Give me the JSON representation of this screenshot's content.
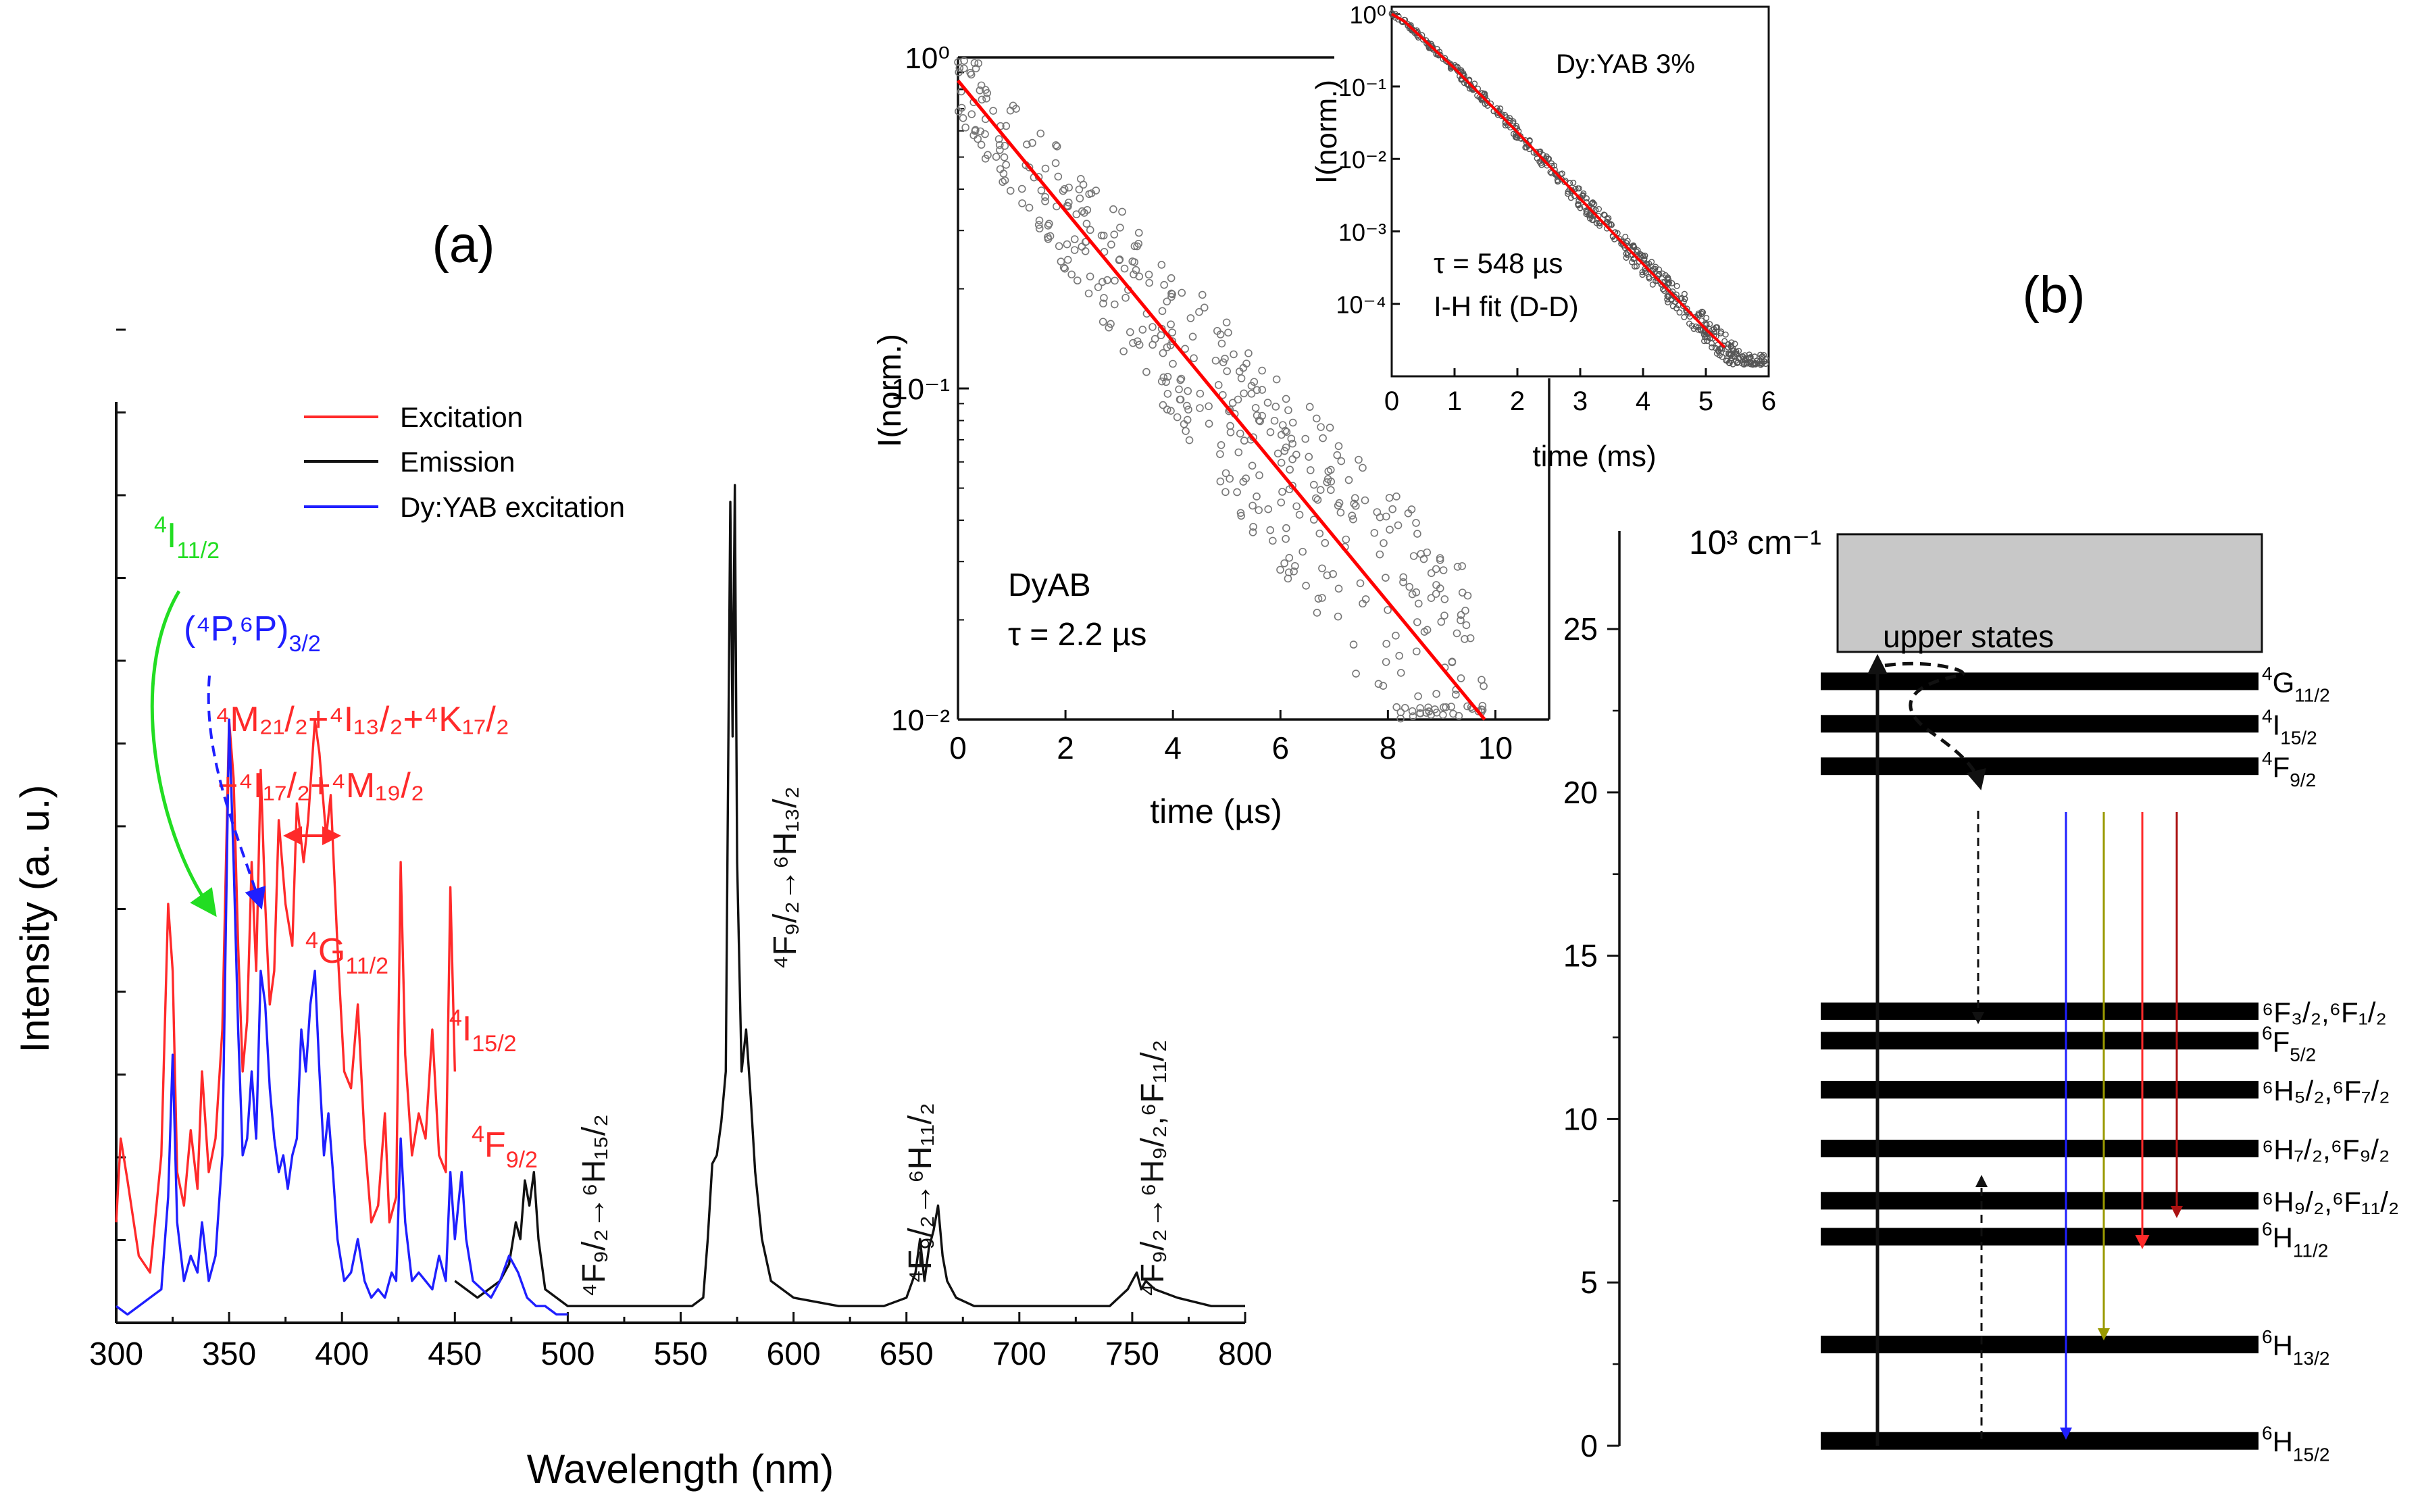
{
  "colors": {
    "excitation": "#ff2a2a",
    "emission": "#111111",
    "dy_yab": "#1f1fff",
    "green_arrow": "#22dd22",
    "fit": "#ff0000",
    "olive": "#999900",
    "dark_red": "#aa1111",
    "upper_box": "#c8c8c8"
  },
  "chart_data": [
    {
      "id": "spectra",
      "type": "line",
      "panel_label": "(a)",
      "xlabel": "Wavelength (nm)",
      "ylabel": "Intensity (a. u.)",
      "xlim": [
        300,
        800
      ],
      "xticks": [
        "300",
        "350",
        "400",
        "450",
        "500",
        "550",
        "600",
        "650",
        "700",
        "750",
        "800"
      ],
      "legend": [
        "Excitation",
        "Emission",
        "Dy:YAB excitation"
      ],
      "series": [
        {
          "name": "Excitation",
          "color_key": "excitation",
          "x": [
            300,
            302,
            305,
            310,
            315,
            320,
            323,
            325,
            327,
            330,
            333,
            336,
            338,
            341,
            344,
            347,
            350,
            352,
            354,
            356,
            358,
            360,
            362,
            364,
            366,
            368,
            370,
            372,
            375,
            378,
            380,
            383,
            385,
            388,
            390,
            393,
            395,
            398,
            401,
            404,
            407,
            410,
            413,
            416,
            419,
            421,
            424,
            426,
            428,
            431,
            434,
            437,
            440,
            443,
            446,
            448,
            450
          ],
          "y": [
            0.12,
            0.22,
            0.17,
            0.08,
            0.06,
            0.2,
            0.5,
            0.42,
            0.18,
            0.14,
            0.23,
            0.16,
            0.3,
            0.18,
            0.22,
            0.35,
            0.72,
            0.65,
            0.45,
            0.3,
            0.36,
            0.55,
            0.42,
            0.66,
            0.5,
            0.38,
            0.42,
            0.6,
            0.5,
            0.45,
            0.62,
            0.55,
            0.6,
            0.72,
            0.68,
            0.58,
            0.63,
            0.45,
            0.3,
            0.28,
            0.38,
            0.22,
            0.12,
            0.14,
            0.25,
            0.12,
            0.15,
            0.55,
            0.32,
            0.2,
            0.25,
            0.22,
            0.35,
            0.2,
            0.18,
            0.52,
            0.3
          ]
        },
        {
          "name": "Emission",
          "color_key": "emission",
          "x": [
            450,
            455,
            460,
            465,
            470,
            474,
            477,
            479,
            481,
            483,
            485,
            487,
            490,
            500,
            520,
            540,
            555,
            560,
            562,
            564,
            566,
            568,
            570,
            571,
            572,
            573,
            574,
            575,
            577,
            579,
            581,
            583,
            586,
            590,
            600,
            620,
            640,
            650,
            654,
            656,
            658,
            660,
            662,
            664,
            666,
            668,
            672,
            680,
            700,
            720,
            740,
            748,
            750,
            752,
            754,
            756,
            760,
            770,
            785,
            800
          ],
          "y": [
            0.05,
            0.04,
            0.03,
            0.04,
            0.05,
            0.07,
            0.12,
            0.1,
            0.17,
            0.14,
            0.18,
            0.1,
            0.04,
            0.02,
            0.02,
            0.02,
            0.02,
            0.03,
            0.1,
            0.19,
            0.2,
            0.24,
            0.3,
            0.65,
            0.98,
            0.7,
            1.0,
            0.55,
            0.3,
            0.35,
            0.27,
            0.18,
            0.1,
            0.05,
            0.03,
            0.02,
            0.02,
            0.03,
            0.06,
            0.1,
            0.05,
            0.09,
            0.11,
            0.14,
            0.08,
            0.05,
            0.03,
            0.02,
            0.02,
            0.02,
            0.02,
            0.04,
            0.05,
            0.06,
            0.04,
            0.05,
            0.04,
            0.03,
            0.02,
            0.02
          ]
        },
        {
          "name": "Dy:YAB excitation",
          "color_key": "dy_yab",
          "x": [
            300,
            305,
            310,
            315,
            320,
            323,
            325,
            327,
            330,
            333,
            336,
            338,
            341,
            344,
            347,
            350,
            352,
            354,
            356,
            358,
            360,
            362,
            364,
            366,
            368,
            370,
            372,
            374,
            376,
            378,
            380,
            382,
            384,
            386,
            388,
            390,
            392,
            394,
            396,
            398,
            401,
            404,
            407,
            410,
            413,
            416,
            419,
            422,
            424,
            426,
            428,
            431,
            434,
            437,
            440,
            443,
            446,
            448,
            450,
            453,
            455,
            458,
            462,
            466,
            470,
            474,
            478,
            482,
            486,
            490,
            495,
            500
          ],
          "y": [
            0.02,
            0.01,
            0.02,
            0.03,
            0.04,
            0.15,
            0.32,
            0.12,
            0.05,
            0.08,
            0.06,
            0.12,
            0.05,
            0.08,
            0.2,
            0.72,
            0.55,
            0.35,
            0.2,
            0.22,
            0.3,
            0.22,
            0.42,
            0.38,
            0.28,
            0.22,
            0.18,
            0.2,
            0.16,
            0.2,
            0.22,
            0.35,
            0.3,
            0.38,
            0.42,
            0.3,
            0.2,
            0.25,
            0.18,
            0.1,
            0.05,
            0.06,
            0.1,
            0.05,
            0.03,
            0.04,
            0.03,
            0.06,
            0.05,
            0.22,
            0.12,
            0.05,
            0.06,
            0.05,
            0.04,
            0.08,
            0.05,
            0.18,
            0.1,
            0.18,
            0.1,
            0.05,
            0.04,
            0.03,
            0.05,
            0.08,
            0.06,
            0.03,
            0.02,
            0.02,
            0.01,
            0.01
          ]
        }
      ],
      "annotations": {
        "i11": {
          "main": "I",
          "pre": "4",
          "sub": "11/2"
        },
        "p32": {
          "text": "(⁴P,⁶P)",
          "sub": "3/2"
        },
        "m_line": {
          "text": "⁴M₂₁/₂+⁴I₁₃/₂+⁴K₁₇/₂"
        },
        "i17_line": {
          "text": "+⁴I₁₇/₂+⁴M₁₉/₂"
        },
        "g11": {
          "main": "G",
          "pre": "4",
          "sub": "11/2"
        },
        "i15": {
          "main": "I",
          "pre": "4",
          "sub": "15/2"
        },
        "f92": {
          "main": "F",
          "pre": "4",
          "sub": "9/2"
        },
        "t_h15": {
          "text": "⁴F₉/₂→⁶H₁₅/₂"
        },
        "t_h13": {
          "text": "⁴F₉/₂→⁶H₁₃/₂"
        },
        "t_h11": {
          "text": "⁴F₉/₂→⁶H₁₁/₂"
        },
        "t_h9": {
          "text": "⁴F₉/₂→⁶H₉/₂,⁶F₁₁/₂"
        }
      }
    },
    {
      "id": "dyab_decay",
      "type": "scatter",
      "xlabel": "time (µs)",
      "ylabel": "I(norm.)",
      "xlim": [
        0,
        11
      ],
      "ylim_log10": [
        -2,
        0
      ],
      "xticks": [
        "0",
        "2",
        "4",
        "6",
        "8",
        "10"
      ],
      "yticks": [
        "10⁰",
        "10⁻¹",
        "10⁻²"
      ],
      "label": "DyAB",
      "tau": "τ = 2.2 µs",
      "fit": {
        "x": [
          0,
          9.8
        ],
        "y_log10": [
          -0.07,
          -2.0
        ]
      },
      "scatter_model": {
        "x_range": [
          0,
          9.8
        ],
        "y_log10_start": -0.07,
        "slope_per_unit": -0.197,
        "noise_decades": 0.3,
        "n": 460
      }
    },
    {
      "id": "dyyab_decay",
      "type": "scatter",
      "xlabel": "time (ms)",
      "ylabel": "I(norm.)",
      "xlim": [
        0,
        6
      ],
      "ylim_log10": [
        -5,
        0.1
      ],
      "xticks": [
        "0",
        "1",
        "2",
        "3",
        "4",
        "5",
        "6"
      ],
      "yticks": [
        "10⁰",
        "10⁻¹",
        "10⁻²",
        "10⁻³",
        "10⁻⁴"
      ],
      "label": "Dy:YAB 3%",
      "tau": "τ = 548 µs",
      "fit_label": "I-H fit (D-D)",
      "fit": {
        "x": [
          0,
          0.2,
          1,
          2,
          3,
          4,
          5,
          5.3
        ],
        "y_log10": [
          0,
          -0.1,
          -0.75,
          -1.63,
          -2.55,
          -3.45,
          -4.35,
          -4.6
        ]
      },
      "scatter_model": {
        "x_range": [
          0,
          6
        ],
        "noise_decades": 0.1,
        "n": 520
      }
    },
    {
      "id": "energy_levels",
      "type": "diagram",
      "panel_label": "(b)",
      "ylabel": "10³ cm⁻¹",
      "ylim": [
        0,
        28
      ],
      "yticks": [
        "0",
        "5",
        "10",
        "15",
        "20",
        "25"
      ],
      "upper_states_label": "upper states",
      "upper_states_range": [
        24.3,
        27.9
      ],
      "levels": [
        {
          "energy": 0.15,
          "main": "H",
          "pre": "6",
          "sub": "15/2"
        },
        {
          "energy": 3.1,
          "main": "H",
          "pre": "6",
          "sub": "13/2"
        },
        {
          "energy": 6.4,
          "main": "H",
          "pre": "6",
          "sub": "11/2"
        },
        {
          "energy": 7.5,
          "label": "⁶H₉/₂,⁶F₁₁/₂"
        },
        {
          "energy": 9.1,
          "label": "⁶H₇/₂,⁶F₉/₂"
        },
        {
          "energy": 10.9,
          "label": "⁶H₅/₂,⁶F₇/₂"
        },
        {
          "energy": 12.4,
          "main": "F",
          "pre": "6",
          "sub": "5/2"
        },
        {
          "energy": 13.3,
          "label": "⁶F₃/₂,⁶F₁/₂"
        },
        {
          "energy": 20.8,
          "main": "F",
          "pre": "4",
          "sub": "9/2"
        },
        {
          "energy": 22.1,
          "main": "I",
          "pre": "4",
          "sub": "15/2"
        },
        {
          "energy": 23.4,
          "main": "G",
          "pre": "4",
          "sub": "11/2"
        }
      ]
    }
  ]
}
